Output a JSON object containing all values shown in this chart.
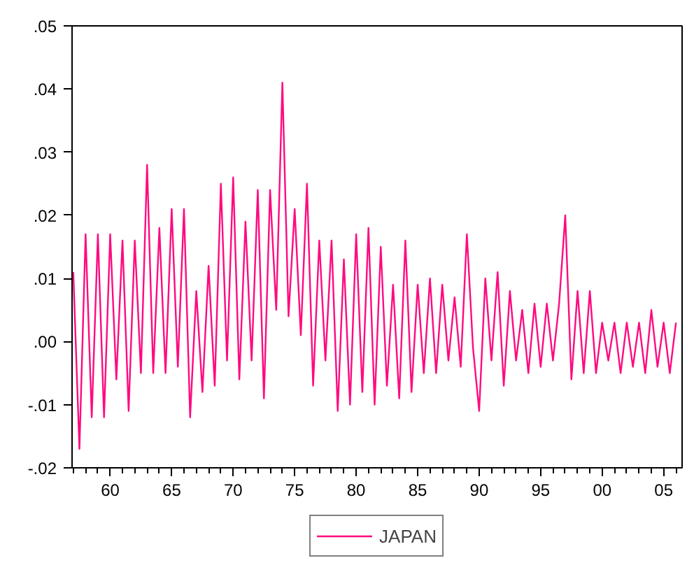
{
  "chart_data": {
    "type": "line",
    "x": [
      1957.0,
      1957.5,
      1958.0,
      1958.5,
      1959.0,
      1959.5,
      1960.0,
      1960.5,
      1961.0,
      1961.5,
      1962.0,
      1962.5,
      1963.0,
      1963.5,
      1964.0,
      1964.5,
      1965.0,
      1965.5,
      1966.0,
      1966.5,
      1967.0,
      1967.5,
      1968.0,
      1968.5,
      1969.0,
      1969.5,
      1970.0,
      1970.5,
      1971.0,
      1971.5,
      1972.0,
      1972.5,
      1973.0,
      1973.5,
      1974.0,
      1974.5,
      1975.0,
      1975.5,
      1976.0,
      1976.5,
      1977.0,
      1977.5,
      1978.0,
      1978.5,
      1979.0,
      1979.5,
      1980.0,
      1980.5,
      1981.0,
      1981.5,
      1982.0,
      1982.5,
      1983.0,
      1983.5,
      1984.0,
      1984.5,
      1985.0,
      1985.5,
      1986.0,
      1986.5,
      1987.0,
      1987.5,
      1988.0,
      1988.5,
      1989.0,
      1989.5,
      1990.0,
      1990.5,
      1991.0,
      1991.5,
      1992.0,
      1992.5,
      1993.0,
      1993.5,
      1994.0,
      1994.5,
      1995.0,
      1995.5,
      1996.0,
      1996.5,
      1997.0,
      1997.5,
      1998.0,
      1998.5,
      1999.0,
      1999.5,
      2000.0,
      2000.5,
      2001.0,
      2001.5,
      2002.0,
      2002.5,
      2003.0,
      2003.5,
      2004.0,
      2004.5,
      2005.0,
      2005.5,
      2006.0
    ],
    "series": [
      {
        "name": "JAPAN",
        "color": "#ff0a80",
        "values": [
          0.011,
          -0.017,
          0.017,
          -0.012,
          0.017,
          -0.012,
          0.017,
          -0.006,
          0.016,
          -0.011,
          0.016,
          -0.005,
          0.028,
          -0.005,
          0.018,
          -0.005,
          0.021,
          -0.004,
          0.021,
          -0.012,
          0.008,
          -0.008,
          0.012,
          -0.007,
          0.025,
          -0.003,
          0.026,
          -0.006,
          0.019,
          -0.003,
          0.024,
          -0.009,
          0.024,
          0.005,
          0.041,
          0.004,
          0.021,
          0.001,
          0.025,
          -0.007,
          0.016,
          -0.003,
          0.016,
          -0.011,
          0.013,
          -0.01,
          0.017,
          -0.008,
          0.018,
          -0.01,
          0.015,
          -0.007,
          0.009,
          -0.009,
          0.016,
          -0.008,
          0.009,
          -0.005,
          0.01,
          -0.005,
          0.009,
          -0.003,
          0.007,
          -0.004,
          0.017,
          -0.001,
          -0.011,
          0.01,
          -0.003,
          0.011,
          -0.007,
          0.008,
          -0.003,
          0.005,
          -0.005,
          0.006,
          -0.004,
          0.006,
          -0.003,
          0.006,
          0.02,
          -0.006,
          0.008,
          -0.005,
          0.008,
          -0.005,
          0.003,
          -0.003,
          0.003,
          -0.005,
          0.003,
          -0.004,
          0.003,
          -0.005,
          0.005,
          -0.004,
          0.003,
          -0.005,
          0.003
        ]
      }
    ],
    "xlim": [
      1956.9,
      2006.5
    ],
    "xticks": [
      {
        "value": 1960,
        "label": "60"
      },
      {
        "value": 1965,
        "label": "65"
      },
      {
        "value": 1970,
        "label": "70"
      },
      {
        "value": 1975,
        "label": "75"
      },
      {
        "value": 1980,
        "label": "80"
      },
      {
        "value": 1985,
        "label": "85"
      },
      {
        "value": 1990,
        "label": "90"
      },
      {
        "value": 1995,
        "label": "95"
      },
      {
        "value": 2000,
        "label": "00"
      },
      {
        "value": 2005,
        "label": "05"
      }
    ],
    "ylim": [
      -0.02,
      0.05
    ],
    "yticks": [
      {
        "value": -0.02,
        "label": "-.02"
      },
      {
        "value": -0.01,
        "label": "-.01"
      },
      {
        "value": 0.0,
        "label": ".00"
      },
      {
        "value": 0.01,
        "label": ".01"
      },
      {
        "value": 0.02,
        "label": ".02"
      },
      {
        "value": 0.03,
        "label": ".03"
      },
      {
        "value": 0.04,
        "label": ".04"
      },
      {
        "value": 0.05,
        "label": ".05"
      }
    ],
    "grid": false,
    "legend": "bottom",
    "line_style": "solid"
  }
}
